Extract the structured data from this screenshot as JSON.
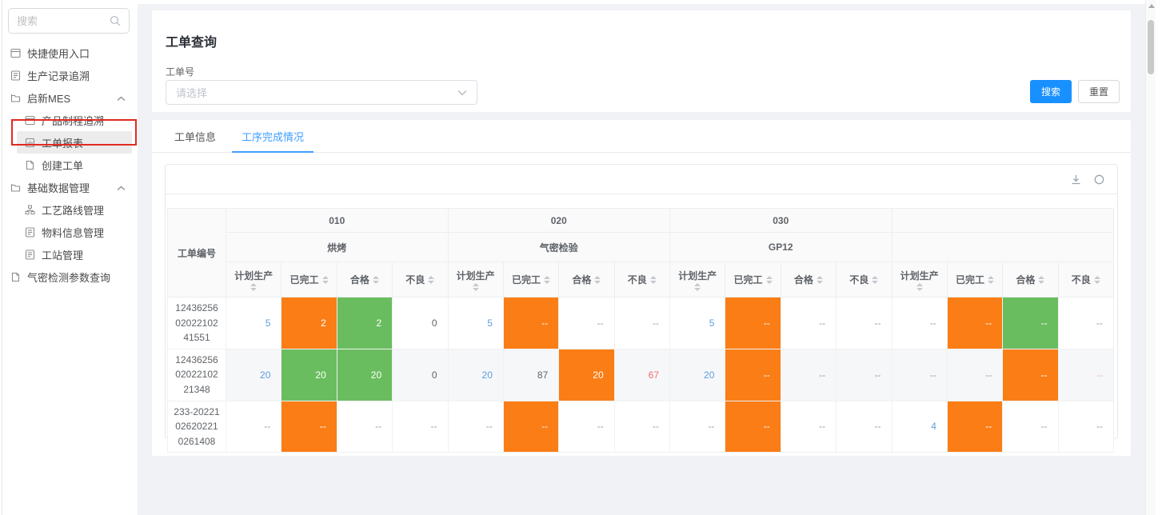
{
  "colors": {
    "primary": "#1890ff",
    "tab_active": "#409eff",
    "link_blue": "#5e9fd9",
    "cell_orange": "#fa7d16",
    "cell_green": "#6abd5e",
    "text_red": "#f56c6c",
    "text_red_light": "#f2b8b4"
  },
  "sidebar": {
    "search_placeholder": "搜索",
    "search_icon": "search-icon",
    "items": [
      {
        "id": "quick-entry",
        "label": "快捷使用入口",
        "icon": "window-icon",
        "level": 0
      },
      {
        "id": "record-trace",
        "label": "生产记录追溯",
        "icon": "clipboard-icon",
        "level": 0
      },
      {
        "id": "qixin-mes",
        "label": "启新MES",
        "icon": "box-icon",
        "level": 0,
        "expanded": true
      },
      {
        "id": "product-trace",
        "label": "产品制程追溯",
        "icon": "window-icon",
        "level": 1
      },
      {
        "id": "workorder-report",
        "label": "工单报表",
        "icon": "report-icon",
        "level": 1,
        "selected": true,
        "annotated": true
      },
      {
        "id": "create-workorder",
        "label": "创建工单",
        "icon": "doc-icon",
        "level": 1
      },
      {
        "id": "base-data",
        "label": "基础数据管理",
        "icon": "box-icon",
        "level": 0,
        "expanded": true
      },
      {
        "id": "route-mgmt",
        "label": "工艺路线管理",
        "icon": "orgchart-icon",
        "level": 1
      },
      {
        "id": "material-mgmt",
        "label": "物料信息管理",
        "icon": "clipboard-icon",
        "level": 1
      },
      {
        "id": "station-mgmt",
        "label": "工站管理",
        "icon": "clipboard-icon",
        "level": 1
      },
      {
        "id": "airtight-query",
        "label": "气密检测参数查询",
        "icon": "doc-icon",
        "level": 0
      }
    ]
  },
  "query": {
    "title": "工单查询",
    "field_label": "工单号",
    "select_placeholder": "请选择",
    "search_button": "搜索",
    "reset_button": "重置"
  },
  "tabs": [
    {
      "id": "workorder-info",
      "label": "工单信息",
      "active": false
    },
    {
      "id": "process-completion",
      "label": "工序完成情况",
      "active": true
    }
  ],
  "toolbar_icons": [
    "download-icon",
    "refresh-icon"
  ],
  "table": {
    "order_col_header": "工单编号",
    "groups": [
      {
        "code": "010",
        "name": "烘烤"
      },
      {
        "code": "020",
        "name": "气密检验"
      },
      {
        "code": "030",
        "name": "GP12"
      },
      {
        "code": "",
        "name": ""
      }
    ],
    "metric_headers": [
      "计划生产",
      "已完工",
      "合格",
      "不良"
    ],
    "rows": [
      {
        "order_no": "124362560202210241551",
        "cells": [
          {
            "t": "5",
            "s": "link"
          },
          {
            "t": "2",
            "s": "orange"
          },
          {
            "t": "2",
            "s": "green"
          },
          {
            "t": "0",
            "s": "plain"
          },
          {
            "t": "5",
            "s": "link"
          },
          {
            "t": "--",
            "s": "orange"
          },
          {
            "t": "--",
            "s": "dash"
          },
          {
            "t": "--",
            "s": "dash"
          },
          {
            "t": "5",
            "s": "link"
          },
          {
            "t": "--",
            "s": "orange"
          },
          {
            "t": "--",
            "s": "dash"
          },
          {
            "t": "--",
            "s": "dash"
          },
          {
            "t": "--",
            "s": "dash"
          },
          {
            "t": "--",
            "s": "orange"
          },
          {
            "t": "--",
            "s": "green"
          },
          {
            "t": "--",
            "s": "dash"
          }
        ]
      },
      {
        "order_no": "124362560202210221348",
        "cells": [
          {
            "t": "20",
            "s": "link"
          },
          {
            "t": "20",
            "s": "green"
          },
          {
            "t": "20",
            "s": "green"
          },
          {
            "t": "0",
            "s": "plain"
          },
          {
            "t": "20",
            "s": "link"
          },
          {
            "t": "87",
            "s": "plain"
          },
          {
            "t": "20",
            "s": "orange"
          },
          {
            "t": "67",
            "s": "red"
          },
          {
            "t": "20",
            "s": "link"
          },
          {
            "t": "--",
            "s": "orange"
          },
          {
            "t": "--",
            "s": "dash"
          },
          {
            "t": "--",
            "s": "dash"
          },
          {
            "t": "--",
            "s": "dash"
          },
          {
            "t": "--",
            "s": "dash"
          },
          {
            "t": "--",
            "s": "orange"
          },
          {
            "t": "--",
            "s": "redlight"
          }
        ]
      },
      {
        "order_no": "233-20221026202210261408",
        "cells": [
          {
            "t": "--",
            "s": "dash"
          },
          {
            "t": "--",
            "s": "orange"
          },
          {
            "t": "--",
            "s": "dash"
          },
          {
            "t": "--",
            "s": "dash"
          },
          {
            "t": "--",
            "s": "dash"
          },
          {
            "t": "--",
            "s": "orange"
          },
          {
            "t": "--",
            "s": "dash"
          },
          {
            "t": "--",
            "s": "dash"
          },
          {
            "t": "--",
            "s": "dash"
          },
          {
            "t": "--",
            "s": "orange"
          },
          {
            "t": "--",
            "s": "dash"
          },
          {
            "t": "--",
            "s": "dash"
          },
          {
            "t": "4",
            "s": "link"
          },
          {
            "t": "--",
            "s": "orange"
          },
          {
            "t": "--",
            "s": "dash"
          },
          {
            "t": "--",
            "s": "dash"
          }
        ]
      }
    ]
  }
}
